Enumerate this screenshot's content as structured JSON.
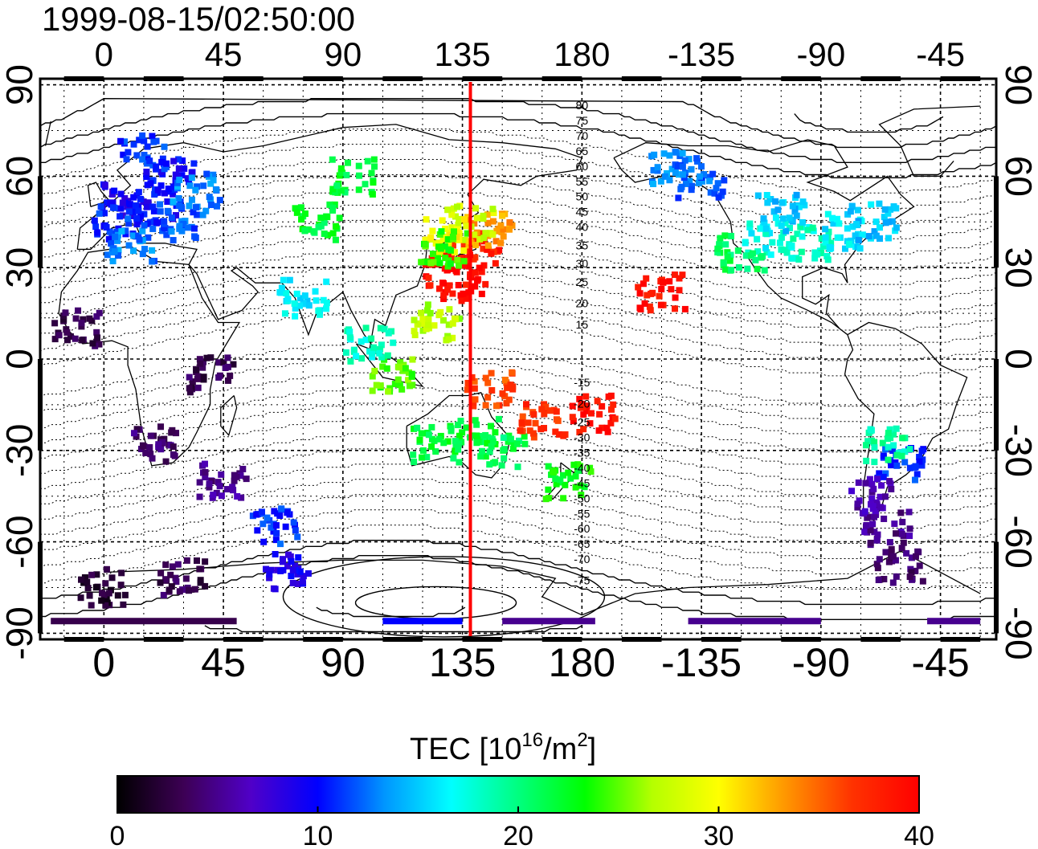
{
  "title": "1999-08-15/02:50:00",
  "map": {
    "lon_ticks_top": [
      "0",
      "45",
      "90",
      "135",
      "180",
      "-135",
      "-90",
      "-45"
    ],
    "lon_ticks_bottom": [
      "0",
      "45",
      "90",
      "135",
      "180",
      "-135",
      "-90",
      "-45"
    ],
    "lat_ticks_left": [
      "90",
      "60",
      "30",
      "0",
      "-30",
      "-60",
      "-90"
    ],
    "lat_ticks_right": [
      "90",
      "60",
      "30",
      "0",
      "-30",
      "-60",
      "-90"
    ],
    "lon_tick_values": [
      0,
      45,
      90,
      135,
      180,
      225,
      270,
      315
    ],
    "lat_tick_values": [
      90,
      60,
      30,
      0,
      -30,
      -60,
      -90
    ],
    "lon_range": [
      -24,
      336
    ],
    "lat_range": [
      -92,
      92
    ],
    "marker_longitude": 138,
    "marker_color": "#ff0000",
    "contour_labels_north": [
      "80",
      "75",
      "70",
      "65",
      "60",
      "55",
      "50",
      "45",
      "40",
      "35",
      "30",
      "25",
      "20",
      "15"
    ],
    "contour_labels_south": [
      "-15",
      "-20",
      "-25",
      "-30",
      "-35",
      "-40",
      "-45",
      "-50",
      "-55",
      "-60",
      "-65",
      "-70",
      "-75"
    ]
  },
  "colorbar": {
    "label_main": "TEC  [10",
    "label_exp": "16",
    "label_unit": "/m",
    "label_unit_exp": "2",
    "label_close": "]",
    "tick_labels": [
      "0",
      "10",
      "20",
      "30",
      "40"
    ],
    "tick_values": [
      0,
      10,
      20,
      30,
      40
    ],
    "range": [
      0,
      40
    ],
    "colors": [
      "#000000",
      "#3d0055",
      "#5000c8",
      "#0000ff",
      "#0096ff",
      "#00ffff",
      "#00ff7f",
      "#00ff00",
      "#b4ff00",
      "#ffff00",
      "#ff9600",
      "#ff3200",
      "#ff0000"
    ]
  },
  "tec_clusters": [
    {
      "lon": 8,
      "lat": 52,
      "tec": 9
    },
    {
      "lon": 20,
      "lat": 50,
      "tec": 10
    },
    {
      "lon": 5,
      "lat": 45,
      "tec": 11
    },
    {
      "lon": 25,
      "lat": 60,
      "tec": 10
    },
    {
      "lon": 30,
      "lat": 45,
      "tec": 12
    },
    {
      "lon": 10,
      "lat": 38,
      "tec": 13
    },
    {
      "lon": 35,
      "lat": 55,
      "tec": 13
    },
    {
      "lon": 15,
      "lat": 68,
      "tec": 11
    },
    {
      "lon": 140,
      "lat": 36,
      "tec": 38
    },
    {
      "lon": 130,
      "lat": 30,
      "tec": 39
    },
    {
      "lon": 135,
      "lat": 25,
      "tec": 40
    },
    {
      "lon": 145,
      "lat": 42,
      "tec": 33
    },
    {
      "lon": 138,
      "lat": 45,
      "tec": 28
    },
    {
      "lon": 130,
      "lat": 40,
      "tec": 30
    },
    {
      "lon": 128,
      "lat": 36,
      "tec": 24
    },
    {
      "lon": 210,
      "lat": 22,
      "tec": 39
    },
    {
      "lon": 250,
      "lat": 40,
      "tec": 17
    },
    {
      "lon": 265,
      "lat": 38,
      "tec": 18
    },
    {
      "lon": 280,
      "lat": 42,
      "tec": 16
    },
    {
      "lon": 240,
      "lat": 35,
      "tec": 21
    },
    {
      "lon": 255,
      "lat": 48,
      "tec": 15
    },
    {
      "lon": 290,
      "lat": 45,
      "tec": 15
    },
    {
      "lon": 215,
      "lat": 62,
      "tec": 13
    },
    {
      "lon": 225,
      "lat": 58,
      "tec": 12
    },
    {
      "lon": 300,
      "lat": -35,
      "tec": 11
    },
    {
      "lon": 295,
      "lat": -28,
      "tec": 19
    },
    {
      "lon": 295,
      "lat": -55,
      "tec": 5
    },
    {
      "lon": 300,
      "lat": -68,
      "tec": 4
    },
    {
      "lon": 290,
      "lat": -45,
      "tec": 6
    },
    {
      "lon": 150,
      "lat": -30,
      "tec": 21
    },
    {
      "lon": 140,
      "lat": -25,
      "tec": 22
    },
    {
      "lon": 125,
      "lat": -28,
      "tec": 22
    },
    {
      "lon": 175,
      "lat": -40,
      "tec": 23
    },
    {
      "lon": 165,
      "lat": -20,
      "tec": 37
    },
    {
      "lon": 185,
      "lat": -18,
      "tec": 39
    },
    {
      "lon": 145,
      "lat": -10,
      "tec": 36
    },
    {
      "lon": 110,
      "lat": -5,
      "tec": 25
    },
    {
      "lon": 100,
      "lat": 5,
      "tec": 18
    },
    {
      "lon": 75,
      "lat": 20,
      "tec": 16
    },
    {
      "lon": 80,
      "lat": 45,
      "tec": 22
    },
    {
      "lon": 95,
      "lat": 60,
      "tec": 22
    },
    {
      "lon": 125,
      "lat": 12,
      "tec": 27
    },
    {
      "lon": 65,
      "lat": -55,
      "tec": 11
    },
    {
      "lon": 70,
      "lat": -70,
      "tec": 9
    },
    {
      "lon": 30,
      "lat": -72,
      "tec": 3
    },
    {
      "lon": 0,
      "lat": -75,
      "tec": 2
    },
    {
      "lon": 45,
      "lat": -40,
      "tec": 5
    },
    {
      "lon": 20,
      "lat": -28,
      "tec": 4
    },
    {
      "lon": 40,
      "lat": -5,
      "tec": 3
    },
    {
      "lon": -10,
      "lat": 10,
      "tec": 3
    }
  ]
}
